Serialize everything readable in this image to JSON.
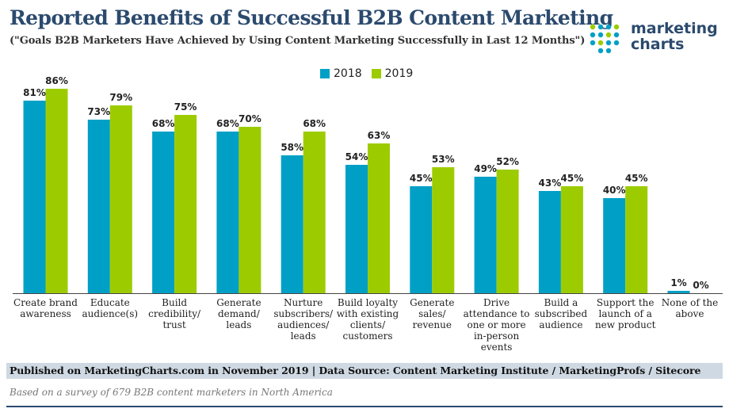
{
  "header": {
    "title": "Reported Benefits of Successful B2B Content Marketing",
    "subtitle": "(\"Goals B2B Marketers Have Achieved by Using Content Marketing Successfully in Last 12 Months\")"
  },
  "logo": {
    "line1": "marketing",
    "line2": "charts"
  },
  "colors": {
    "series_2018": "#00a0c6",
    "series_2019": "#9ccc00",
    "title": "#2b4a6e"
  },
  "chart_data": {
    "type": "bar",
    "categories": [
      [
        "Create brand",
        "awareness"
      ],
      [
        "Educate",
        "audience(s)"
      ],
      [
        "Build",
        "credibility/",
        "trust"
      ],
      [
        "Generate",
        "demand/",
        "leads"
      ],
      [
        "Nurture",
        "subscribers/",
        "audiences/",
        "leads"
      ],
      [
        "Build loyalty",
        "with existing",
        "clients/",
        "customers"
      ],
      [
        "Generate",
        "sales/",
        "revenue"
      ],
      [
        "Drive",
        "attendance to",
        "one or more",
        "in-person",
        "events"
      ],
      [
        "Build a",
        "subscribed",
        "audience"
      ],
      [
        "Support the",
        "launch of a",
        "new product"
      ],
      [
        "None of the",
        "above"
      ]
    ],
    "series": [
      {
        "name": "2018",
        "values": [
          81,
          73,
          68,
          68,
          58,
          54,
          45,
          49,
          43,
          40,
          1
        ],
        "labels": [
          "81%",
          "73%",
          "68%",
          "68%",
          "58%",
          "54%",
          "45%",
          "49%",
          "43%",
          "40%",
          "1%"
        ]
      },
      {
        "name": "2019",
        "values": [
          86,
          79,
          75,
          70,
          68,
          63,
          53,
          52,
          45,
          45,
          0
        ],
        "labels": [
          "86%",
          "79%",
          "75%",
          "70%",
          "68%",
          "63%",
          "53%",
          "52%",
          "45%",
          "45%",
          "0%"
        ]
      }
    ],
    "ylim": [
      0,
      100
    ],
    "grid": false,
    "legend": "top-center"
  },
  "footer": {
    "source": "Published on MarketingCharts.com in November 2019 | Data Source: Content Marketing Institute / MarketingProfs / Sitecore",
    "note": "Based on a survey of 679 B2B content marketers in North America"
  }
}
